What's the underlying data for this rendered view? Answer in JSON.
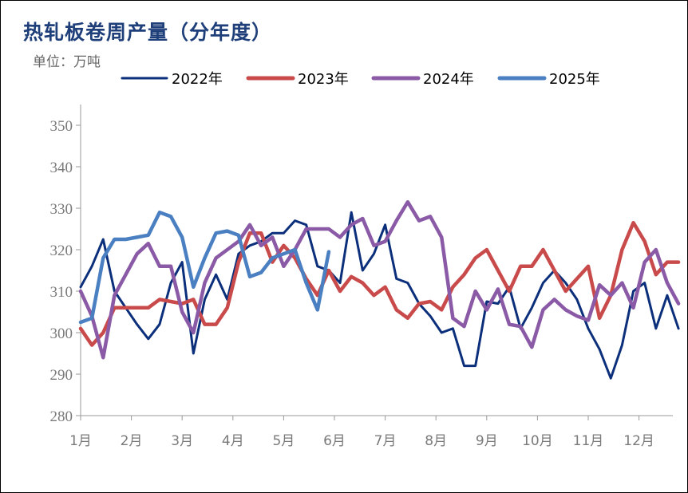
{
  "title": "热轧板卷周产量（分年度）",
  "unit": "单位：万吨",
  "chart_data": {
    "type": "line",
    "title": "热轧板卷周产量（分年度）",
    "ylabel": "单位：万吨",
    "xlabel": "",
    "ylim": [
      280,
      355
    ],
    "yticks": [
      280,
      290,
      300,
      310,
      320,
      330,
      340,
      350
    ],
    "xlim": [
      0,
      52.5
    ],
    "month_ticks": [
      {
        "label": "1月",
        "x": 0
      },
      {
        "label": "2月",
        "x": 4.5
      },
      {
        "label": "3月",
        "x": 9
      },
      {
        "label": "4月",
        "x": 13.5
      },
      {
        "label": "5月",
        "x": 18
      },
      {
        "label": "6月",
        "x": 22.5
      },
      {
        "label": "7月",
        "x": 27
      },
      {
        "label": "8月",
        "x": 31.5
      },
      {
        "label": "9月",
        "x": 36
      },
      {
        "label": "10月",
        "x": 40.5
      },
      {
        "label": "11月",
        "x": 45
      },
      {
        "label": "12月",
        "x": 49.5
      }
    ],
    "grid": false,
    "legend": "top",
    "series": [
      {
        "name": "2022年",
        "color": "#0b2f7a",
        "values": [
          311,
          316,
          322.5,
          310,
          306,
          302,
          298.5,
          302,
          312,
          317,
          295,
          308,
          314,
          308,
          319,
          321,
          322,
          324,
          324,
          327,
          326,
          316,
          315,
          312,
          329,
          315,
          319,
          326,
          313,
          312,
          307,
          304,
          300,
          301,
          292,
          292,
          307.5,
          307,
          311,
          301,
          306,
          312,
          315,
          312,
          308,
          301,
          296,
          289,
          297,
          310,
          312,
          301,
          309,
          301
        ]
      },
      {
        "name": "2023年",
        "color": "#c94a4a",
        "values": [
          301,
          297,
          300,
          306,
          306,
          306,
          306,
          308,
          307.5,
          307,
          308,
          302,
          302,
          306,
          317,
          324,
          324,
          317,
          321,
          318,
          313,
          309,
          315,
          310,
          313.5,
          312,
          309,
          311,
          305.5,
          303.5,
          307,
          307.5,
          305.5,
          311,
          314,
          318,
          320,
          315,
          310,
          316,
          316,
          320,
          315,
          310,
          313,
          316,
          303.5,
          309,
          320,
          326.5,
          322,
          314,
          317,
          317
        ]
      },
      {
        "name": "2024年",
        "color": "#8a5aa6",
        "values": [
          310,
          304,
          294,
          309,
          314,
          319,
          321.5,
          316,
          316,
          305,
          300,
          312,
          318,
          320,
          322,
          326,
          321,
          323,
          316,
          320,
          325,
          325,
          325,
          323,
          326,
          327.5,
          321,
          322,
          327,
          331.5,
          327,
          328,
          323,
          303.5,
          301.5,
          310,
          305.5,
          310.5,
          302,
          301.5,
          296.5,
          305.5,
          308,
          305.5,
          304,
          303,
          311.5,
          309,
          312,
          306,
          317,
          320,
          312,
          307
        ]
      },
      {
        "name": "2025年",
        "color": "#4a7fc1",
        "values": [
          302.5,
          303.5,
          318,
          322.5,
          322.5,
          323,
          323.5,
          329,
          328,
          323,
          311,
          318,
          324,
          324.5,
          323.5,
          313.5,
          314.5,
          318,
          319,
          320,
          312,
          305.5,
          319.5
        ]
      }
    ]
  }
}
